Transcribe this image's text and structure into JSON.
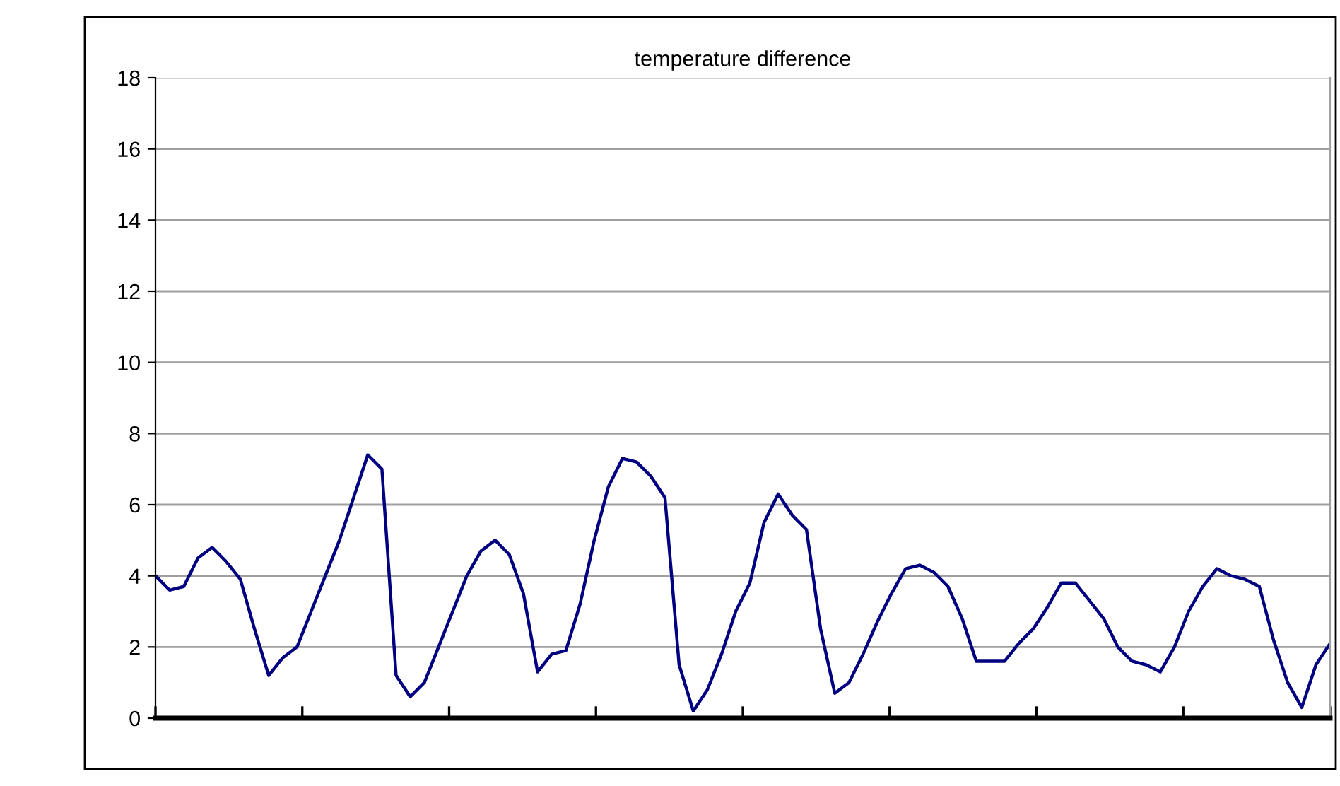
{
  "chart_data": {
    "type": "line",
    "title": "temperature difference",
    "categories": [
      null,
      null,
      null,
      null,
      null,
      null,
      null,
      null,
      null,
      null,
      null,
      null,
      null,
      null,
      null,
      null,
      null,
      null,
      null,
      null,
      null,
      null,
      null,
      null,
      null,
      null,
      null,
      null,
      null,
      null,
      null,
      null,
      null,
      null,
      null,
      null,
      null,
      null,
      null,
      null,
      null,
      null,
      null,
      null,
      null,
      null,
      null,
      null,
      null,
      null,
      null,
      null,
      null,
      null,
      null,
      null,
      null,
      null,
      null,
      null,
      null,
      null,
      null,
      null,
      null,
      null,
      null,
      null,
      null,
      null,
      null,
      null,
      null,
      null,
      null,
      null,
      null,
      null,
      null,
      null,
      null,
      null,
      null,
      null
    ],
    "series": [
      {
        "color": "#000080",
        "values": [
          4.0,
          3.6,
          3.7,
          4.5,
          4.8,
          4.4,
          3.9,
          2.5,
          1.2,
          1.7,
          2.0,
          3.0,
          4.0,
          5.0,
          6.2,
          7.4,
          7.0,
          1.2,
          0.6,
          1.0,
          2.0,
          3.0,
          4.0,
          4.7,
          5.0,
          4.6,
          3.5,
          1.3,
          1.8,
          1.9,
          3.2,
          5.0,
          6.5,
          7.3,
          7.2,
          6.8,
          6.2,
          1.5,
          0.2,
          0.8,
          1.8,
          3.0,
          3.8,
          5.5,
          6.3,
          5.7,
          5.3,
          2.5,
          0.7,
          1.0,
          1.8,
          2.7,
          3.5,
          4.2,
          4.3,
          4.1,
          3.7,
          2.8,
          1.6,
          1.6,
          1.6,
          2.1,
          2.5,
          3.1,
          3.8,
          3.8,
          3.3,
          2.8,
          2.0,
          1.6,
          1.5,
          1.3,
          2.0,
          3.0,
          3.7,
          4.2,
          4.0,
          3.9,
          3.7,
          2.2,
          1.0,
          0.3,
          1.5,
          2.1
        ]
      }
    ],
    "ylim": [
      0,
      18
    ],
    "yticks": [
      0,
      2,
      4,
      6,
      8,
      10,
      12,
      14,
      16,
      18
    ],
    "grid": "y",
    "legend": false,
    "marker": "none",
    "line_style": "solid"
  }
}
